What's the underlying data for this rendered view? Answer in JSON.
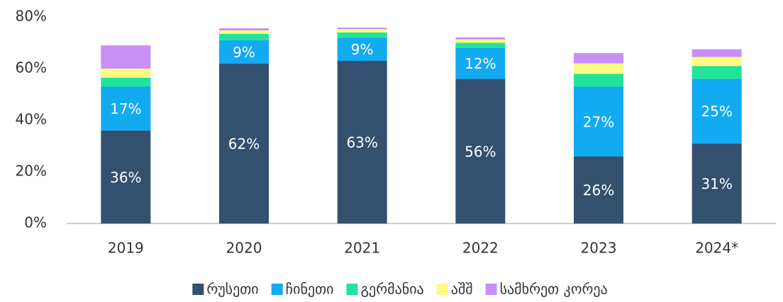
{
  "chart_data": {
    "type": "stacked_bar",
    "categories": [
      "2019",
      "2020",
      "2021",
      "2022",
      "2023",
      "2024*"
    ],
    "series": [
      {
        "name": "რუსეთი",
        "color": "#34506f",
        "values": [
          36,
          62,
          63,
          56,
          26,
          31
        ],
        "value_labels": [
          "36%",
          "62%",
          "63%",
          "56%",
          "26%",
          "31%"
        ]
      },
      {
        "name": "ჩინეთი",
        "color": "#12aaf0",
        "values": [
          17,
          9,
          9,
          12,
          27,
          25
        ],
        "value_labels": [
          "17%",
          "9%",
          "9%",
          "12%",
          "27%",
          "25%"
        ]
      },
      {
        "name": "გერმანია",
        "color": "#22e39a",
        "values": [
          3.5,
          2.5,
          2,
          2,
          5,
          5
        ]
      },
      {
        "name": "აშშ",
        "color": "#fdfc80",
        "values": [
          3.5,
          1.3,
          1.3,
          1.3,
          4,
          3.5
        ]
      },
      {
        "name": "სამხრეთ კორეა",
        "color": "#c890f5",
        "values": [
          9,
          0.8,
          0.6,
          0.8,
          4,
          3
        ]
      }
    ],
    "ylim": [
      0,
      80
    ],
    "yticks": [
      {
        "value": 0,
        "label": "0%"
      },
      {
        "value": 20,
        "label": "20%"
      },
      {
        "value": 40,
        "label": "40%"
      },
      {
        "value": 60,
        "label": "60%"
      },
      {
        "value": 80,
        "label": "80%"
      }
    ],
    "grid": false,
    "legend": "bottom"
  }
}
